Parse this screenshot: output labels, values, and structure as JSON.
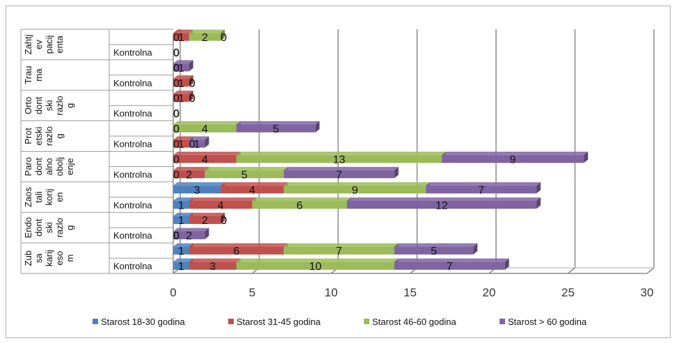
{
  "chart_data": {
    "type": "bar",
    "orientation": "horizontal",
    "stacked": true,
    "three_d": true,
    "xlim": [
      0,
      30
    ],
    "x_ticks": [
      "0",
      "5",
      "10",
      "15",
      "20",
      "25",
      "30"
    ],
    "grid": true,
    "legend_position": "bottom",
    "groups": [
      {
        "label": "Zub sa karijesom",
        "label_lines": [
          "Zub",
          "sa",
          "karij",
          "eso",
          "m"
        ]
      },
      {
        "label": "Endodontski razlog",
        "label_lines": [
          "Endo",
          "dont",
          "ski",
          "razlo",
          "g"
        ]
      },
      {
        "label": "Zaostali korijen",
        "label_lines": [
          "Zaos",
          "tali",
          "korij",
          "en"
        ]
      },
      {
        "label": "Parodontalno oboljenje",
        "label_lines": [
          "Paro",
          "dont",
          "alno",
          "obolj",
          "enje"
        ]
      },
      {
        "label": "Protetski razlog",
        "label_lines": [
          "Prot",
          "etski",
          "razlo",
          "g"
        ]
      },
      {
        "label": "Ortodontski razlog",
        "label_lines": [
          "Orto",
          "dont",
          "ski",
          "razlo",
          "g"
        ]
      },
      {
        "label": "Trauma",
        "label_lines": [
          "Trau",
          "ma"
        ]
      },
      {
        "label": "Zahtjev pacijenta",
        "label_lines": [
          "Zahtj",
          "ev",
          "pacij",
          "enta"
        ]
      }
    ],
    "sub_label": "Kontrolna",
    "rows": [
      {
        "group": 0,
        "sub": "Kontrolna",
        "values": [
          1,
          3,
          10,
          7
        ]
      },
      {
        "group": 0,
        "sub": "",
        "values": [
          1,
          6,
          7,
          5
        ]
      },
      {
        "group": 1,
        "sub": "Kontrolna",
        "values": [
          0,
          0,
          0,
          2
        ]
      },
      {
        "group": 1,
        "sub": "",
        "values": [
          1,
          2,
          0,
          0
        ]
      },
      {
        "group": 2,
        "sub": "Kontrolna",
        "values": [
          1,
          4,
          6,
          12
        ]
      },
      {
        "group": 2,
        "sub": "",
        "values": [
          3,
          4,
          9,
          7
        ]
      },
      {
        "group": 3,
        "sub": "Kontrolna",
        "values": [
          0,
          2,
          5,
          7
        ]
      },
      {
        "group": 3,
        "sub": "",
        "values": [
          0,
          4,
          13,
          9
        ]
      },
      {
        "group": 4,
        "sub": "Kontrolna",
        "values": [
          0,
          1,
          0,
          1
        ]
      },
      {
        "group": 4,
        "sub": "",
        "values": [
          0,
          0,
          4,
          5
        ]
      },
      {
        "group": 5,
        "sub": "Kontrolna",
        "values": [
          0,
          0,
          0,
          0
        ]
      },
      {
        "group": 5,
        "sub": "",
        "values": [
          0,
          1,
          0,
          0
        ]
      },
      {
        "group": 6,
        "sub": "Kontrolna",
        "values": [
          0,
          1,
          0,
          0
        ]
      },
      {
        "group": 6,
        "sub": "",
        "values": [
          0,
          0,
          0,
          1
        ]
      },
      {
        "group": 7,
        "sub": "Kontrolna",
        "values": [
          0,
          0,
          0,
          0
        ]
      },
      {
        "group": 7,
        "sub": "",
        "values": [
          0,
          1,
          2,
          0
        ]
      }
    ],
    "series": [
      {
        "name": "Starost 18-30 godina",
        "color": "#4F81BD"
      },
      {
        "name": "Starost 31-45 godina",
        "color": "#C0504D"
      },
      {
        "name": "Starost 46-60 godina",
        "color": "#9BBB59"
      },
      {
        "name": "Starost > 60 godina",
        "color": "#8064A2"
      }
    ]
  }
}
